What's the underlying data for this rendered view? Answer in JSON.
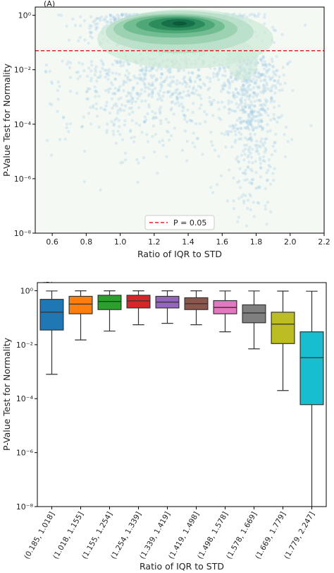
{
  "chart_data": [
    {
      "panel_label": "(A)",
      "type": "scatter",
      "subtype": "scatter with kernel density contour overlay",
      "xlabel": "Ratio of IQR to STD",
      "ylabel": "P-Value Test for Normality",
      "xlim": [
        0.5,
        2.2
      ],
      "ylim": [
        1e-08,
        2
      ],
      "yscale": "log",
      "xticks": [
        0.6,
        0.8,
        1.0,
        1.2,
        1.4,
        1.6,
        1.8,
        2.0,
        2.2
      ],
      "xtick_labels": [
        "0.6",
        "0.8",
        "1.0",
        "1.2",
        "1.4",
        "1.6",
        "1.8",
        "2.0",
        "2.2"
      ],
      "yticks": [
        1e-08,
        1e-06,
        0.0001,
        0.01,
        1
      ],
      "ytick_labels": [
        "10⁻⁸",
        "10⁻⁶",
        "10⁻⁴",
        "10⁻²",
        "10⁰"
      ],
      "reference_line": {
        "y": 0.05,
        "style": "dashed",
        "color": "#d62728",
        "label": "P = 0.05"
      },
      "legend": {
        "position": "bottom-center",
        "entries": [
          "P = 0.05"
        ]
      },
      "density_peak": {
        "x": 1.35,
        "y": 0.5
      },
      "colors": {
        "points": "#9ecae1",
        "density_low": "#d8efe1",
        "density_high": "#0f6a46",
        "background": "#f4f9f4"
      }
    },
    {
      "panel_label": "(B)",
      "type": "box",
      "xlabel": "Ratio of IQR to STD",
      "ylabel": "P-Value Test for Normality",
      "yscale": "log",
      "ylim": [
        1e-08,
        2
      ],
      "yticks": [
        1e-08,
        1e-06,
        0.0001,
        0.01,
        1
      ],
      "ytick_labels": [
        "10⁻⁸",
        "10⁻⁶",
        "10⁻⁴",
        "10⁻²",
        "10⁰"
      ],
      "categories": [
        "(0.185, 1.018]",
        "(1.018, 1.155]",
        "(1.155, 1.254]",
        "(1.254, 1.339]",
        "(1.339, 1.419]",
        "(1.419, 1.498]",
        "(1.498, 1.578]",
        "(1.578, 1.669]",
        "(1.669, 1.779]",
        "(1.779, 2.247]"
      ],
      "boxes": [
        {
          "whisker_low": 0.0008,
          "q1": 0.035,
          "median": 0.16,
          "q3": 0.48,
          "whisker_high": 0.98,
          "color": "#1f77b4"
        },
        {
          "whisker_low": 0.015,
          "q1": 0.14,
          "median": 0.32,
          "q3": 0.62,
          "whisker_high": 0.99,
          "color": "#ff7f0e"
        },
        {
          "whisker_low": 0.032,
          "q1": 0.2,
          "median": 0.4,
          "q3": 0.68,
          "whisker_high": 0.99,
          "color": "#2ca02c"
        },
        {
          "whisker_low": 0.055,
          "q1": 0.23,
          "median": 0.42,
          "q3": 0.68,
          "whisker_high": 0.99,
          "color": "#d62728"
        },
        {
          "whisker_low": 0.062,
          "q1": 0.23,
          "median": 0.38,
          "q3": 0.62,
          "whisker_high": 0.99,
          "color": "#9467bd"
        },
        {
          "whisker_low": 0.055,
          "q1": 0.2,
          "median": 0.33,
          "q3": 0.55,
          "whisker_high": 0.99,
          "color": "#8c564b"
        },
        {
          "whisker_low": 0.03,
          "q1": 0.14,
          "median": 0.24,
          "q3": 0.43,
          "whisker_high": 0.98,
          "color": "#e377c2"
        },
        {
          "whisker_low": 0.007,
          "q1": 0.065,
          "median": 0.15,
          "q3": 0.3,
          "whisker_high": 0.98,
          "color": "#7f7f7f"
        },
        {
          "whisker_low": 0.0002,
          "q1": 0.011,
          "median": 0.058,
          "q3": 0.16,
          "whisker_high": 0.97,
          "color": "#bcbd22"
        },
        {
          "whisker_low": 1e-08,
          "q1": 6e-05,
          "median": 0.0033,
          "q3": 0.03,
          "whisker_high": 0.96,
          "color": "#17becf"
        }
      ]
    }
  ]
}
